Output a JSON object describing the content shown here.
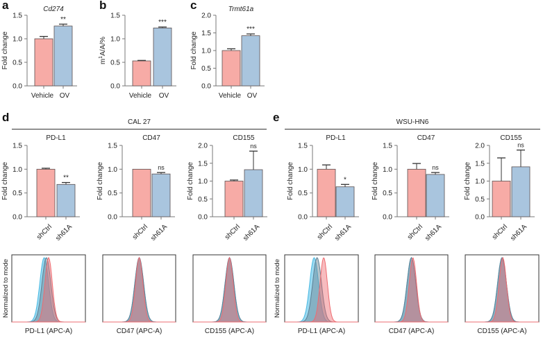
{
  "panels": {
    "a": "a",
    "b": "b",
    "c": "c",
    "d": "d",
    "e": "e"
  },
  "groups": {
    "d_title": "CAL 27",
    "e_title": "WSU-HN6"
  },
  "colors": {
    "control": "#f7aba6",
    "treatment": "#a9c5de",
    "edge": "#5a5050",
    "hist_red": "#ee6b70",
    "hist_blue": "#49b9e3"
  },
  "chart_data": [
    {
      "type": "bar",
      "panel": "a",
      "title": "Cd274",
      "title_italic": true,
      "ylabel": "Fold change",
      "categories": [
        "Vehicle",
        "OV"
      ],
      "values": [
        1.0,
        1.27
      ],
      "errors": [
        0.05,
        0.04
      ],
      "significance": [
        "",
        "**"
      ],
      "ylim": [
        0,
        1.5
      ],
      "yticks": [
        "0.0",
        "0.5",
        "1.0",
        "1.5"
      ]
    },
    {
      "type": "bar",
      "panel": "b",
      "title": "",
      "ylabel": "m1A/A/%",
      "categories": [
        "Vehicle",
        "OV"
      ],
      "values": [
        0.53,
        1.23
      ],
      "errors": [
        0.01,
        0.02
      ],
      "significance": [
        "",
        "***"
      ],
      "ylim": [
        0,
        1.5
      ],
      "yticks": [
        "0.0",
        "0.5",
        "1.0",
        "1.5"
      ]
    },
    {
      "type": "bar",
      "panel": "c",
      "title": "Trmt61a",
      "title_italic": true,
      "ylabel": "Fold change",
      "categories": [
        "Vehicle",
        "OV"
      ],
      "values": [
        1.0,
        1.42
      ],
      "errors": [
        0.05,
        0.05
      ],
      "significance": [
        "",
        "***"
      ],
      "ylim": [
        0,
        2.0
      ],
      "yticks": [
        "0.0",
        "0.5",
        "1.0",
        "1.5",
        "2.0"
      ]
    },
    {
      "type": "bar",
      "panel": "d",
      "title": "PD-L1",
      "ylabel": "Fold change",
      "categories": [
        "shCtrl",
        "sh61A"
      ],
      "values": [
        1.0,
        0.68
      ],
      "errors": [
        0.02,
        0.04
      ],
      "significance": [
        "",
        "**"
      ],
      "ylim": [
        0,
        1.5
      ],
      "yticks": [
        "0.0",
        "0.5",
        "1.0",
        "1.5"
      ]
    },
    {
      "type": "bar",
      "panel": "d",
      "title": "CD47",
      "ylabel": "Fold change",
      "categories": [
        "shCtrl",
        "sh61A"
      ],
      "values": [
        1.0,
        0.9
      ],
      "errors": [
        0.0,
        0.03
      ],
      "significance": [
        "",
        "ns"
      ],
      "ylim": [
        0,
        1.5
      ],
      "yticks": [
        "0.0",
        "0.5",
        "1.0",
        "1.5"
      ]
    },
    {
      "type": "bar",
      "panel": "d",
      "title": "CD155",
      "ylabel": "Fold change",
      "categories": [
        "shCtrl",
        "sh61A"
      ],
      "values": [
        1.0,
        1.32
      ],
      "errors": [
        0.03,
        0.52
      ],
      "significance": [
        "",
        "ns"
      ],
      "ylim": [
        0,
        2.0
      ],
      "yticks": [
        "0.0",
        "0.5",
        "1.0",
        "1.5",
        "2.0"
      ]
    },
    {
      "type": "bar",
      "panel": "e",
      "title": "PD-L1",
      "ylabel": "Fold change",
      "categories": [
        "shCtrl",
        "sh61A"
      ],
      "values": [
        1.0,
        0.63
      ],
      "errors": [
        0.09,
        0.05
      ],
      "significance": [
        "",
        "*"
      ],
      "ylim": [
        0,
        1.5
      ],
      "yticks": [
        "0.0",
        "0.5",
        "1.0",
        "1.5"
      ]
    },
    {
      "type": "bar",
      "panel": "e",
      "title": "CD47",
      "ylabel": "Fold change",
      "categories": [
        "shCtrl",
        "sh61A"
      ],
      "values": [
        1.0,
        0.89
      ],
      "errors": [
        0.12,
        0.04
      ],
      "significance": [
        "",
        "ns"
      ],
      "ylim": [
        0,
        1.5
      ],
      "yticks": [
        "0.0",
        "0.5",
        "1.0",
        "1.5"
      ]
    },
    {
      "type": "bar",
      "panel": "e",
      "title": "CD155",
      "ylabel": "Fold change",
      "categories": [
        "shCtrl",
        "sh61A"
      ],
      "values": [
        1.0,
        1.4
      ],
      "errors": [
        0.65,
        0.47
      ],
      "significance": [
        "",
        "ns"
      ],
      "ylim": [
        0,
        2.0
      ],
      "yticks": [
        "0.0",
        "0.5",
        "1.0",
        "1.5",
        "2.0"
      ]
    }
  ],
  "histograms": {
    "ylabel": "Normalized to mode",
    "items": [
      {
        "panel": "d",
        "xlabel": "PD-L1 (APC-A)"
      },
      {
        "panel": "d",
        "xlabel": "CD47 (APC-A)"
      },
      {
        "panel": "d",
        "xlabel": "CD155 (APC-A)"
      },
      {
        "panel": "e",
        "xlabel": "PD-L1 (APC-A)"
      },
      {
        "panel": "e",
        "xlabel": "CD47 (APC-A)"
      },
      {
        "panel": "e",
        "xlabel": "CD155 (APC-A)"
      }
    ]
  }
}
